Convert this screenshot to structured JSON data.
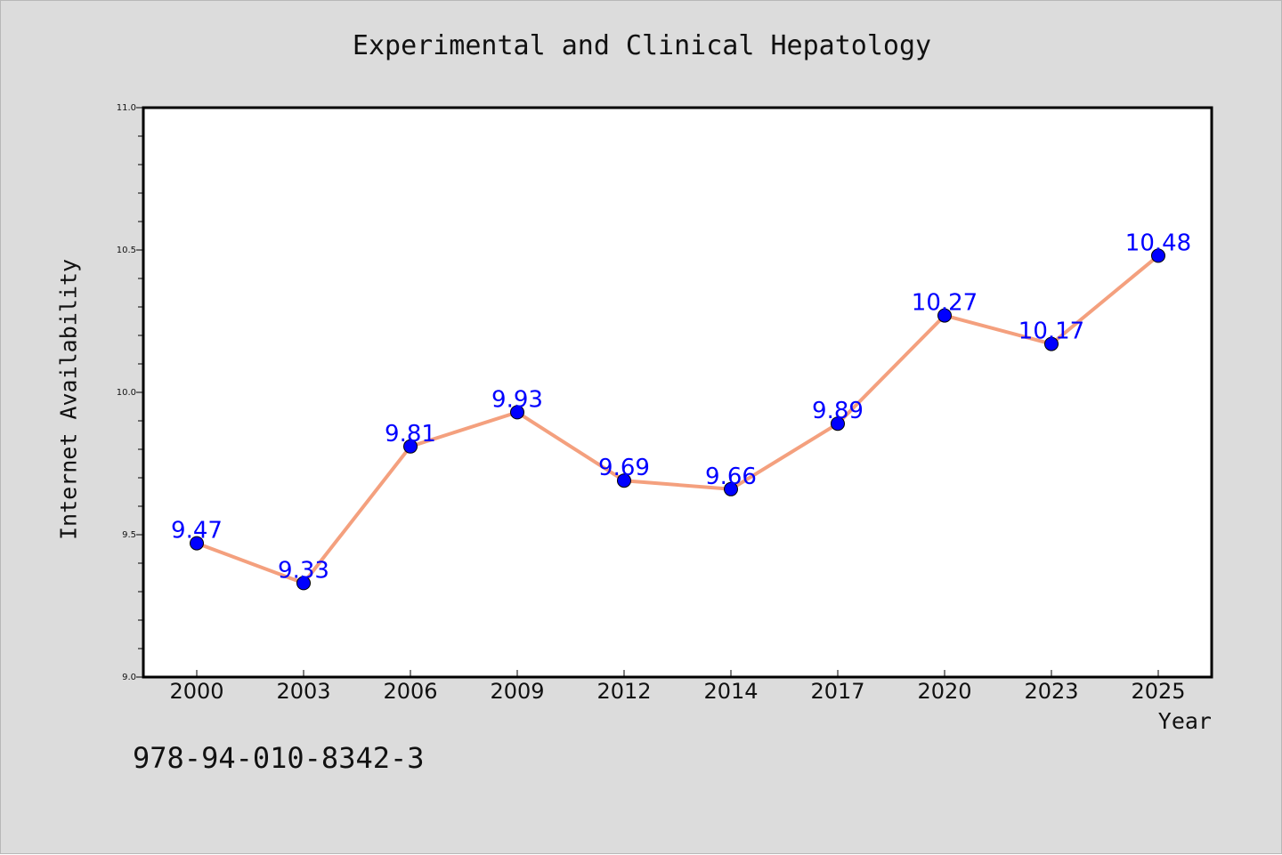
{
  "figure": {
    "title": "Experimental and Clinical Hepatology",
    "isbn": "978-94-010-8342-3",
    "background": "#dcdcdc"
  },
  "chart_data": {
    "type": "line",
    "title": "Experimental and Clinical Hepatology",
    "xlabel": "Year",
    "ylabel": "Internet Availability",
    "x": [
      "2000",
      "2003",
      "2006",
      "2009",
      "2012",
      "2014",
      "2017",
      "2020",
      "2023",
      "2025"
    ],
    "series": [
      {
        "values": [
          9.47,
          9.33,
          9.81,
          9.93,
          9.69,
          9.66,
          9.89,
          10.27,
          10.17,
          10.48
        ],
        "labels": [
          "9.47",
          "9.33",
          "9.81",
          "9.93",
          "9.69",
          "9.66",
          "9.89",
          "10.27",
          "10.17",
          "10.48"
        ],
        "line_color": "#f4a07e",
        "marker_color": "#0000ff",
        "label_color": "#0000ff"
      }
    ],
    "ylim": [
      9.0,
      11.0
    ],
    "y_ticks": [
      "9.0",
      "9.5",
      "10.0",
      "10.5",
      "11.0"
    ],
    "grid": false,
    "legend": "none",
    "plot_background": "#ffffff"
  }
}
